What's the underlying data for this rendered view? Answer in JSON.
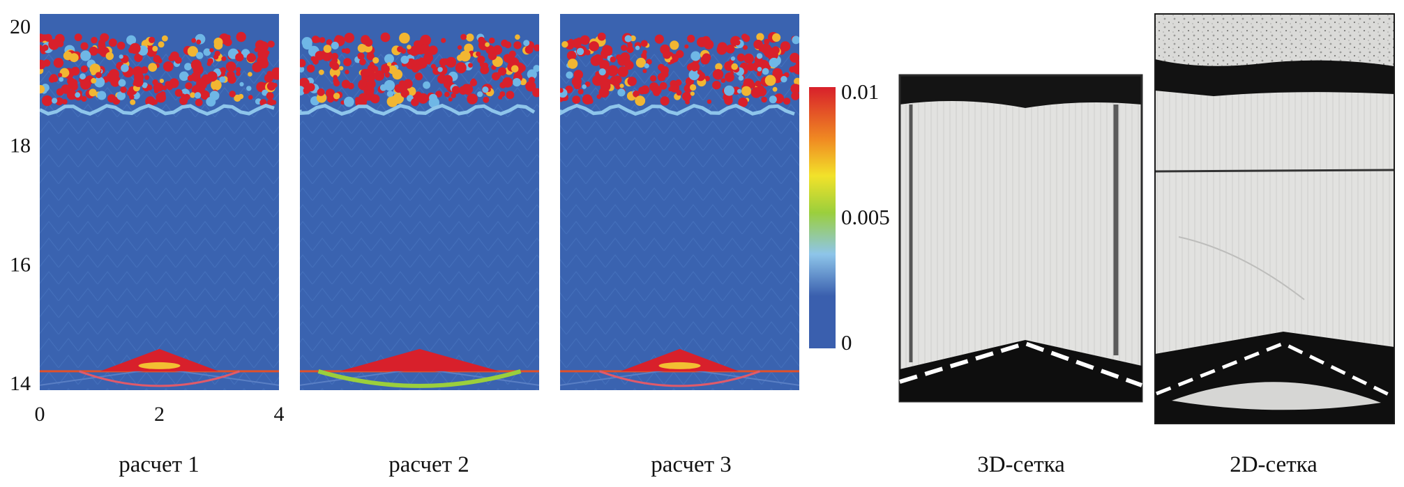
{
  "chart_data": {
    "type": "heatmap",
    "y_axis": {
      "ticks": [
        "14",
        "16",
        "18",
        "20"
      ],
      "ylim": [
        14,
        20
      ]
    },
    "x_axis": {
      "ticks": [
        "0",
        "2",
        "4"
      ],
      "xlim": [
        0,
        4
      ]
    },
    "colorbar": {
      "ticks": [
        "0.01",
        "0.005",
        "0"
      ],
      "range": [
        0,
        0.01
      ],
      "colors": [
        "#3a5fae",
        "#8ec5ea",
        "#9bcf3c",
        "#f2e22a",
        "#f08a22",
        "#d8202b"
      ]
    },
    "panels": [
      {
        "caption": "расчет 1",
        "kind": "simulation"
      },
      {
        "caption": "расчет 2",
        "kind": "simulation"
      },
      {
        "caption": "расчет 3",
        "kind": "simulation"
      },
      {
        "caption": "3D-сетка",
        "kind": "photo"
      },
      {
        "caption": "2D-сетка",
        "kind": "photo"
      }
    ]
  }
}
